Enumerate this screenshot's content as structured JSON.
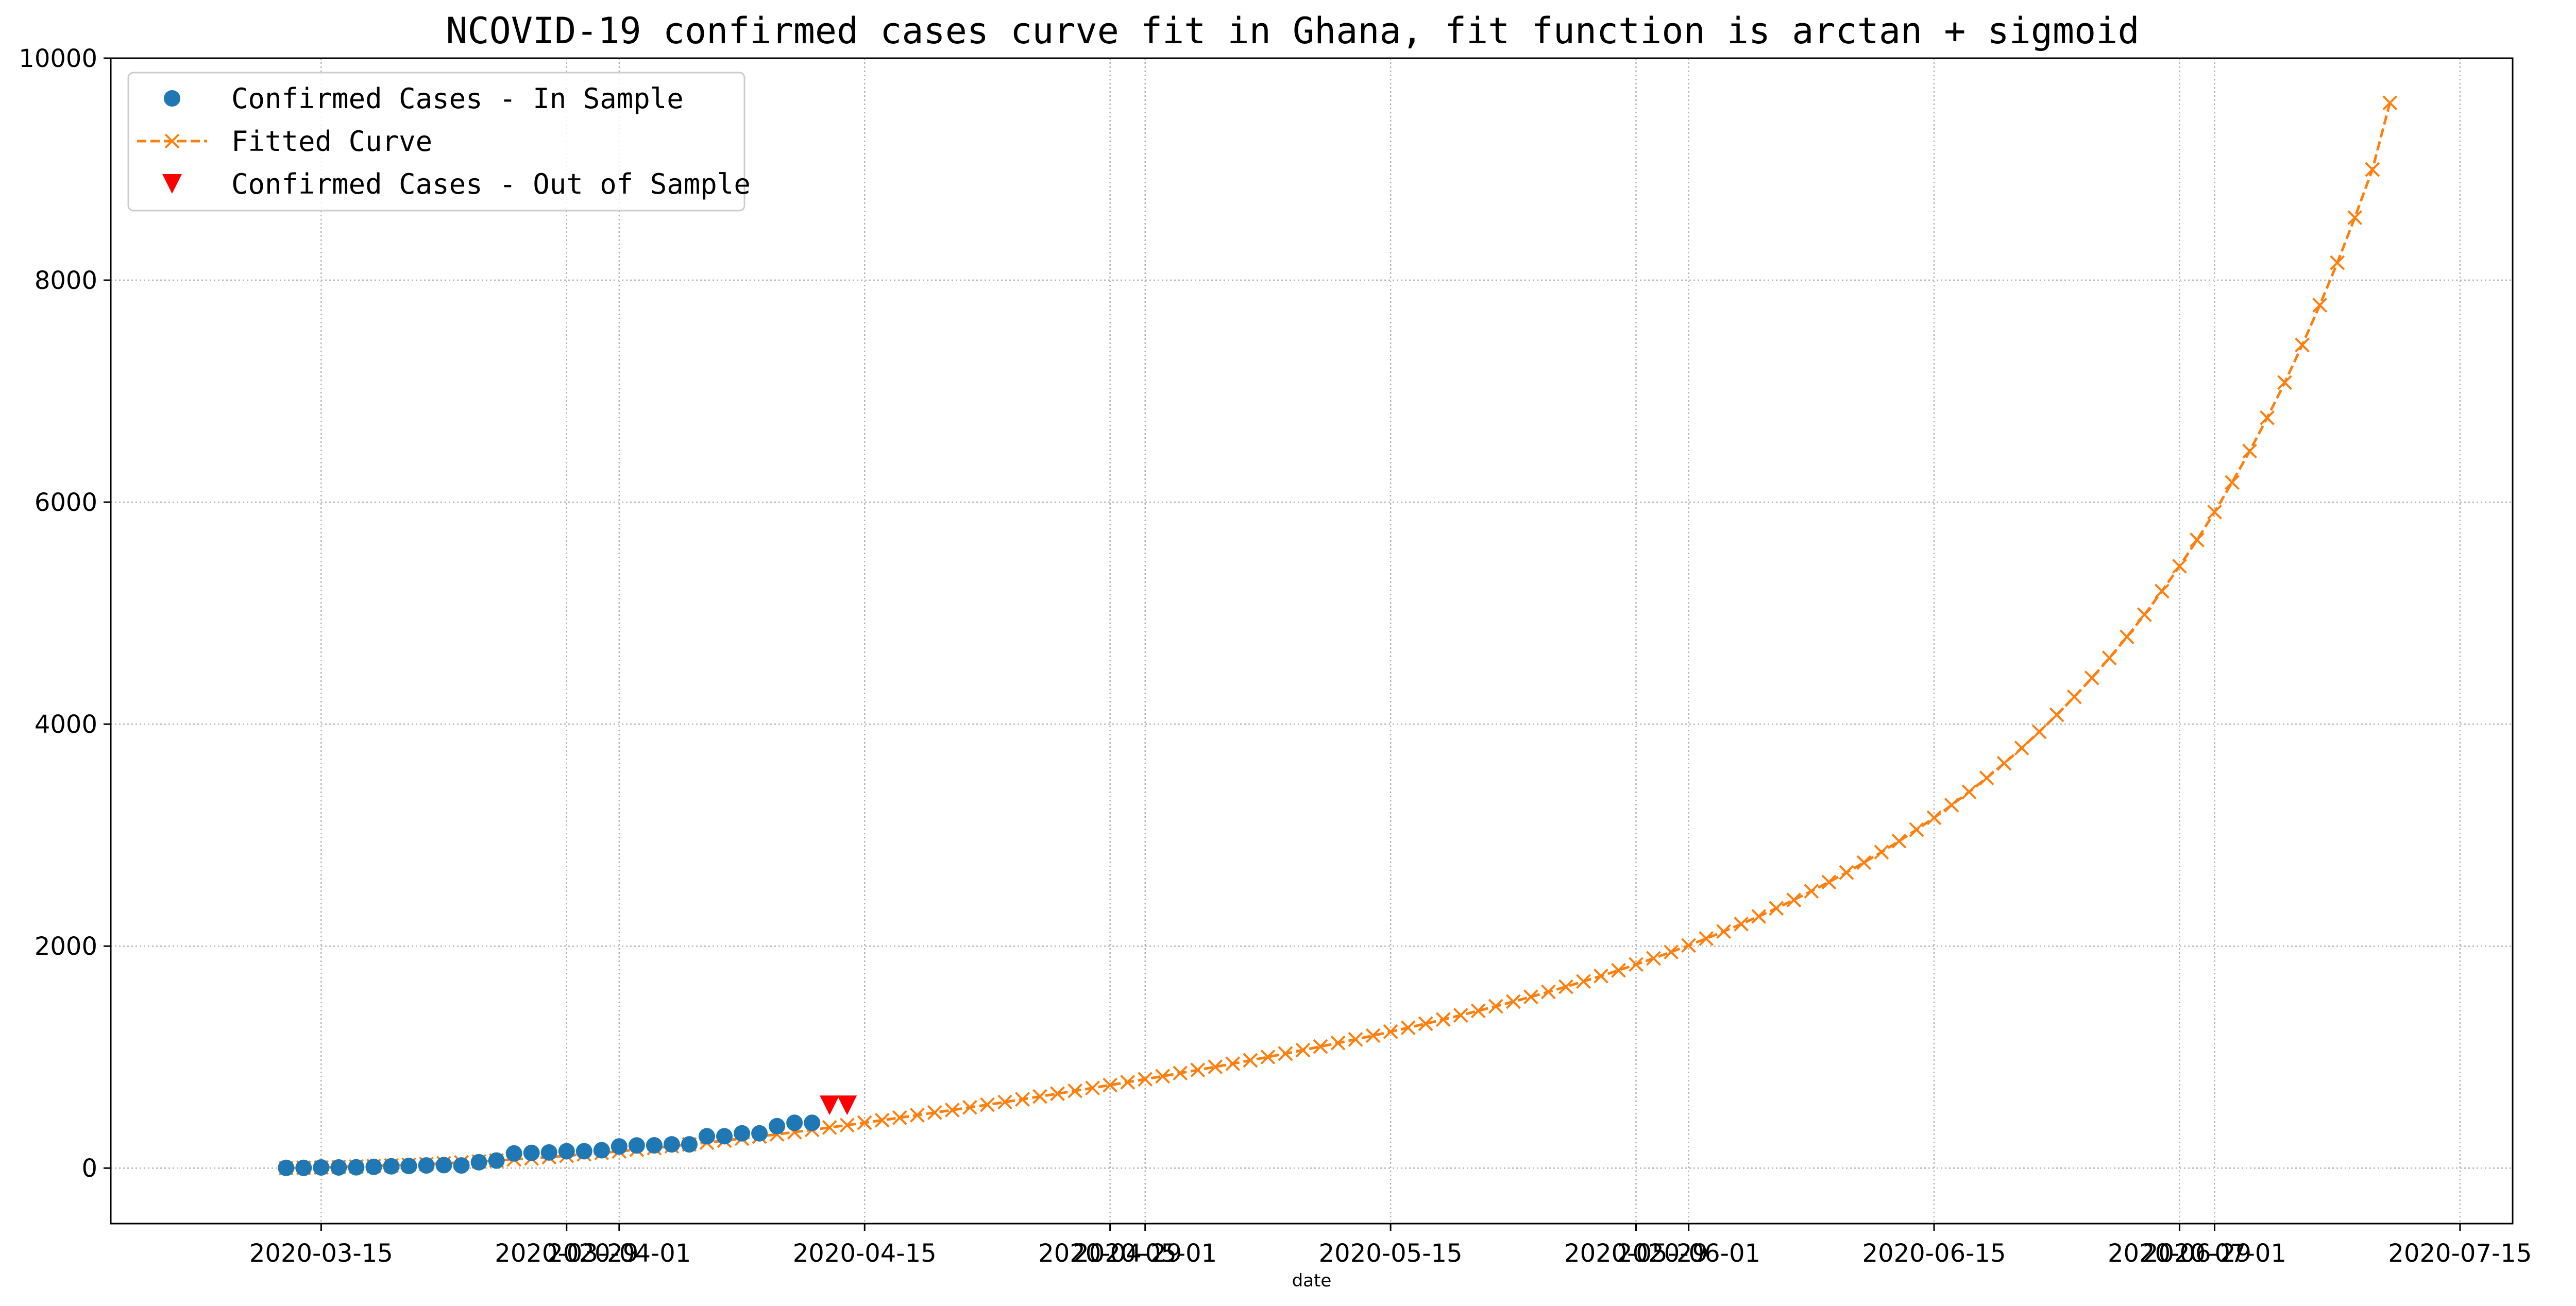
{
  "chart_data": {
    "type": "line",
    "title": "NCOVID-19 confirmed cases curve fit in Ghana, fit function is arctan + sigmoid",
    "xlabel": "date",
    "ylabel": "",
    "xlim": [
      "2020-03-03",
      "2020-07-18"
    ],
    "ylim": [
      -500,
      10000
    ],
    "grid": true,
    "grid_style": "dotted",
    "legend_position": "top-left",
    "x_ticks": [
      "2020-03-15",
      "2020-03-29",
      "2020-04-01",
      "2020-04-15",
      "2020-04-29",
      "2020-05-01",
      "2020-05-15",
      "2020-05-29",
      "2020-06-01",
      "2020-06-15",
      "2020-06-29",
      "2020-07-01",
      "2020-07-15"
    ],
    "y_ticks": [
      0,
      2000,
      4000,
      6000,
      8000,
      10000
    ],
    "series": [
      {
        "name": "Confirmed Cases - In Sample",
        "kind": "scatter",
        "marker": "circle",
        "color": "#1f77b4",
        "x": [
          "2020-03-13",
          "2020-03-14",
          "2020-03-15",
          "2020-03-16",
          "2020-03-17",
          "2020-03-18",
          "2020-03-19",
          "2020-03-20",
          "2020-03-21",
          "2020-03-22",
          "2020-03-23",
          "2020-03-24",
          "2020-03-25",
          "2020-03-26",
          "2020-03-27",
          "2020-03-28",
          "2020-03-29",
          "2020-03-30",
          "2020-03-31",
          "2020-04-01",
          "2020-04-02",
          "2020-04-03",
          "2020-04-04",
          "2020-04-05",
          "2020-04-06",
          "2020-04-07",
          "2020-04-08",
          "2020-04-09",
          "2020-04-10",
          "2020-04-11",
          "2020-04-12"
        ],
        "y": [
          2,
          2,
          6,
          6,
          7,
          11,
          16,
          19,
          24,
          27,
          24,
          53,
          68,
          132,
          137,
          141,
          152,
          152,
          161,
          195,
          204,
          205,
          214,
          214,
          287,
          287,
          313,
          313,
          378,
          408,
          408
        ]
      },
      {
        "name": "Fitted Curve",
        "kind": "line",
        "marker": "x",
        "line_style": "dashed",
        "color": "#ff7f0e",
        "x_start": "2020-03-13",
        "x_step_days": 1,
        "y": [
          0,
          3,
          6,
          10,
          14,
          19,
          24,
          30,
          36,
          43,
          51,
          59,
          68,
          78,
          88,
          99,
          111,
          124,
          137,
          151,
          166,
          181,
          197,
          213,
          230,
          248,
          266,
          285,
          304,
          324,
          345,
          366,
          387,
          409,
          431,
          454,
          477,
          500,
          523,
          547,
          571,
          595,
          620,
          645,
          670,
          696,
          722,
          748,
          774,
          801,
          828,
          856,
          884,
          912,
          941,
          971,
          1001,
          1032,
          1063,
          1095,
          1127,
          1160,
          1194,
          1229,
          1265,
          1301,
          1339,
          1377,
          1417,
          1458,
          1500,
          1543,
          1588,
          1634,
          1682,
          1731,
          1782,
          1835,
          1890,
          1947,
          2006,
          2068,
          2132,
          2199,
          2268,
          2341,
          2416,
          2495,
          2577,
          2663,
          2753,
          2847,
          2946,
          3049,
          3157,
          3271,
          3390,
          3515,
          3647,
          3785,
          3931,
          4084,
          4246,
          4416,
          4596,
          4786,
          4986,
          5198,
          5423,
          5660,
          5911,
          6178,
          6460,
          6760,
          7078,
          7416,
          7775,
          8157,
          8564,
          8997,
          9598
        ]
      },
      {
        "name": "Confirmed Cases - Out of Sample",
        "kind": "scatter",
        "marker": "triangle-down",
        "color": "#ff0000",
        "x": [
          "2020-04-13",
          "2020-04-14"
        ],
        "y": [
          566,
          566
        ]
      }
    ]
  }
}
